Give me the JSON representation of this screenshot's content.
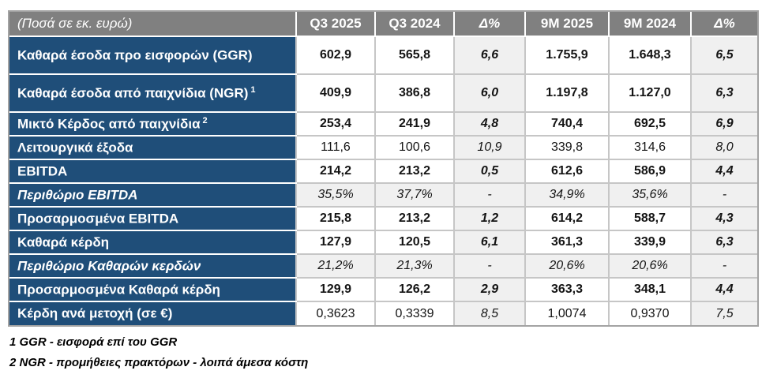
{
  "table": {
    "unit_header": "(Ποσά σε εκ. ευρώ)",
    "column_headers": [
      "Q3 2025",
      "Q3 2024",
      "Δ%",
      "9M 2025",
      "9M 2024",
      "Δ%"
    ],
    "rows": [
      {
        "label": "Καθαρά έσοδα προ εισφορών (GGR)",
        "sup": "",
        "style": "bold",
        "tall": true,
        "values": [
          "602,9",
          "565,8",
          "6,6",
          "1.755,9",
          "1.648,3",
          "6,5"
        ]
      },
      {
        "label": "Καθαρά έσοδα από παιχνίδια (NGR)",
        "sup": "1",
        "style": "bold",
        "tall": true,
        "values": [
          "409,9",
          "386,8",
          "6,0",
          "1.197,8",
          "1.127,0",
          "6,3"
        ]
      },
      {
        "label": "Μικτό Κέρδος από παιχνίδια",
        "sup": "2",
        "style": "bold",
        "tall": false,
        "values": [
          "253,4",
          "241,9",
          "4,8",
          "740,4",
          "692,5",
          "6,9"
        ]
      },
      {
        "label": "Λειτουργικά έξοδα",
        "sup": "",
        "style": "regular",
        "tall": false,
        "values": [
          "111,6",
          "100,6",
          "10,9",
          "339,8",
          "314,6",
          "8,0"
        ]
      },
      {
        "label": "EBITDA",
        "sup": "",
        "style": "bold",
        "tall": false,
        "values": [
          "214,2",
          "213,2",
          "0,5",
          "612,6",
          "586,9",
          "4,4"
        ]
      },
      {
        "label": "Περιθώριο EBITDA",
        "sup": "",
        "style": "percent",
        "tall": false,
        "values": [
          "35,5%",
          "37,7%",
          "-",
          "34,9%",
          "35,6%",
          "-"
        ]
      },
      {
        "label": "Προσαρμοσμένα EBITDA",
        "sup": "",
        "style": "bold",
        "tall": false,
        "values": [
          "215,8",
          "213,2",
          "1,2",
          "614,2",
          "588,7",
          "4,3"
        ]
      },
      {
        "label": "Καθαρά κέρδη",
        "sup": "",
        "style": "bold",
        "tall": false,
        "values": [
          "127,9",
          "120,5",
          "6,1",
          "361,3",
          "339,9",
          "6,3"
        ]
      },
      {
        "label": "Περιθώριο Καθαρών κερδών",
        "sup": "",
        "style": "percent",
        "tall": false,
        "values": [
          "21,2%",
          "21,3%",
          "-",
          "20,6%",
          "20,6%",
          "-"
        ]
      },
      {
        "label": "Προσαρμοσμένα Καθαρά κέρδη",
        "sup": "",
        "style": "bold",
        "tall": false,
        "values": [
          "129,9",
          "126,2",
          "2,9",
          "363,3",
          "348,1",
          "4,4"
        ]
      },
      {
        "label": "Κέρδη ανά μετοχή (σε €)",
        "sup": "",
        "style": "regular",
        "tall": false,
        "values": [
          "0,3623",
          "0,3339",
          "8,5",
          "1,0074",
          "0,9370",
          "7,5"
        ]
      }
    ],
    "footnotes": [
      "1 GGR - εισφορά επί του GGR",
      "2 NGR - προμήθειες πρακτόρων - λοιπά άμεσα κόστη"
    ]
  },
  "colors": {
    "header_bg": "#808080",
    "row_label_bg": "#1F4E79",
    "delta_column_bg": "#F0F0F0",
    "grid_line": "#C6C6C6",
    "outer_border": "#A3A3A3",
    "header_text": "#FFFFFF",
    "value_text": "#141414"
  }
}
